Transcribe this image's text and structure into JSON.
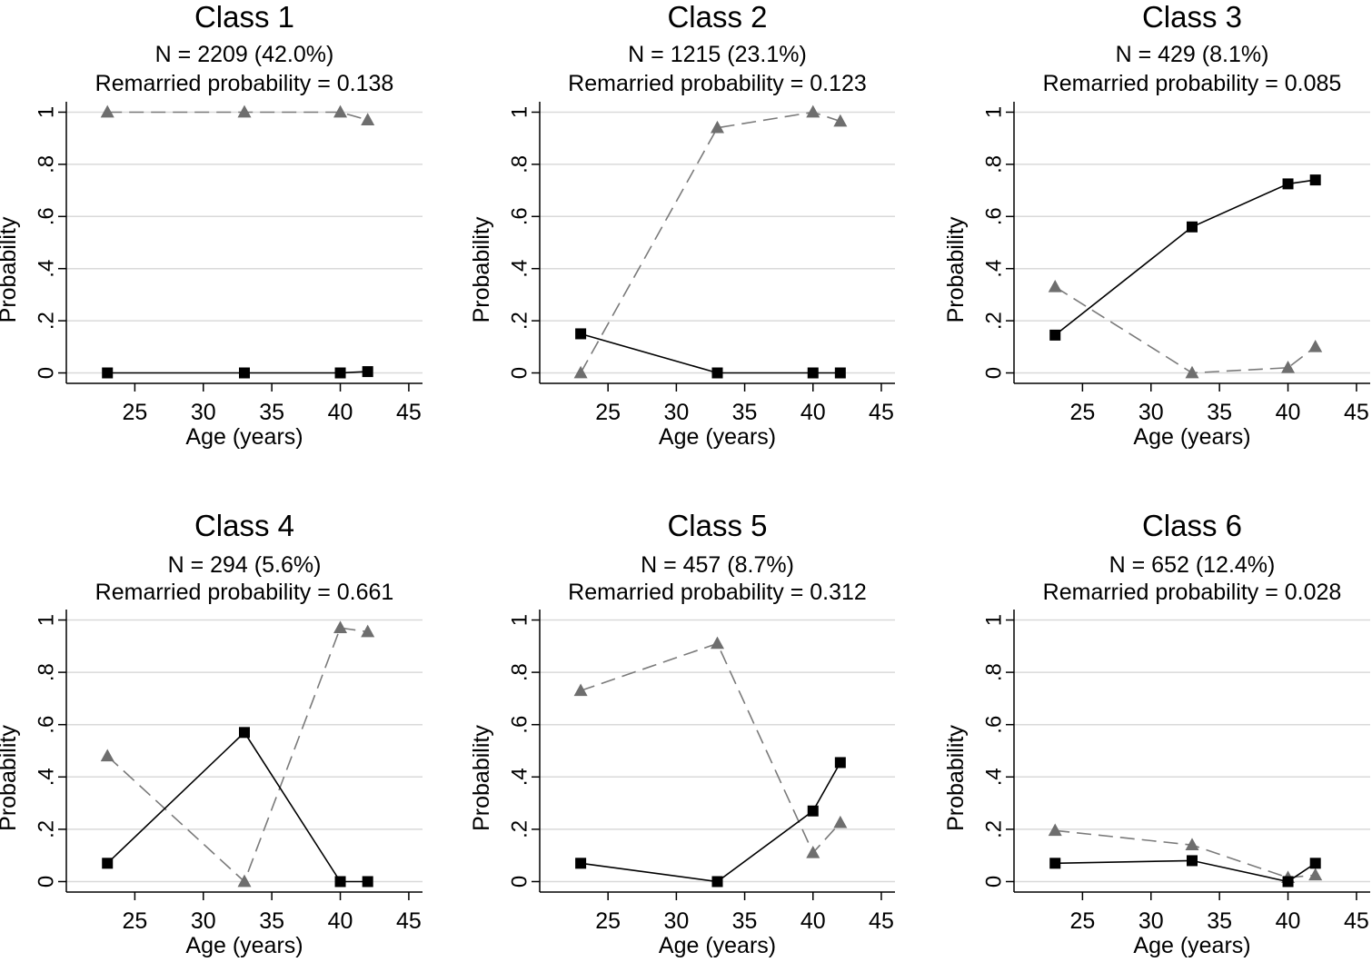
{
  "chart_data": [
    {
      "type": "line",
      "title": "Class 1",
      "subtitle": "N = 2209 (42.0%)",
      "note": "Remarried probability = 0.138",
      "xlabel": "Age (years)",
      "ylabel": "Probability",
      "xlim": [
        20,
        46
      ],
      "ylim": [
        -0.04,
        1.04
      ],
      "xticks": [
        25,
        30,
        35,
        40,
        45
      ],
      "yticks": [
        "0",
        ".2",
        ".4",
        ".6",
        ".8",
        "1"
      ],
      "ytick_values": [
        0,
        0.2,
        0.4,
        0.6,
        0.8,
        1
      ],
      "grid": true,
      "series": [
        {
          "style": "dashed-gray-triangle",
          "x": [
            23,
            33,
            40,
            42
          ],
          "values": [
            1.0,
            1.0,
            1.0,
            0.97
          ]
        },
        {
          "style": "solid-black-square",
          "x": [
            23,
            33,
            40,
            42
          ],
          "values": [
            0.0,
            0.0,
            0.0,
            0.005
          ]
        }
      ]
    },
    {
      "type": "line",
      "title": "Class 2",
      "subtitle": "N = 1215 (23.1%)",
      "note": "Remarried probability = 0.123",
      "xlabel": "Age (years)",
      "ylabel": "Probability",
      "xlim": [
        20,
        46
      ],
      "ylim": [
        -0.04,
        1.04
      ],
      "xticks": [
        25,
        30,
        35,
        40,
        45
      ],
      "yticks": [
        "0",
        ".2",
        ".4",
        ".6",
        ".8",
        "1"
      ],
      "ytick_values": [
        0,
        0.2,
        0.4,
        0.6,
        0.8,
        1
      ],
      "grid": true,
      "series": [
        {
          "style": "dashed-gray-triangle",
          "x": [
            23,
            33,
            40,
            42
          ],
          "values": [
            0.0,
            0.94,
            1.0,
            0.965
          ]
        },
        {
          "style": "solid-black-square",
          "x": [
            23,
            33,
            40,
            42
          ],
          "values": [
            0.15,
            0.0,
            0.0,
            0.0
          ]
        }
      ]
    },
    {
      "type": "line",
      "title": "Class 3",
      "subtitle": "N = 429 (8.1%)",
      "note": "Remarried probability = 0.085",
      "xlabel": "Age (years)",
      "ylabel": "Probability",
      "xlim": [
        20,
        46
      ],
      "ylim": [
        -0.04,
        1.04
      ],
      "xticks": [
        25,
        30,
        35,
        40,
        45
      ],
      "yticks": [
        "0",
        ".2",
        ".4",
        ".6",
        ".8",
        "1"
      ],
      "ytick_values": [
        0,
        0.2,
        0.4,
        0.6,
        0.8,
        1
      ],
      "grid": true,
      "series": [
        {
          "style": "dashed-gray-triangle",
          "x": [
            23,
            33,
            40,
            42
          ],
          "values": [
            0.33,
            0.0,
            0.02,
            0.1
          ]
        },
        {
          "style": "solid-black-square",
          "x": [
            23,
            33,
            40,
            42
          ],
          "values": [
            0.145,
            0.56,
            0.725,
            0.74
          ]
        }
      ]
    },
    {
      "type": "line",
      "title": "Class 4",
      "subtitle": "N = 294 (5.6%)",
      "note": "Remarried probability = 0.661",
      "xlabel": "Age (years)",
      "ylabel": "Probability",
      "xlim": [
        20,
        46
      ],
      "ylim": [
        -0.04,
        1.04
      ],
      "xticks": [
        25,
        30,
        35,
        40,
        45
      ],
      "yticks": [
        "0",
        ".2",
        ".4",
        ".6",
        ".8",
        "1"
      ],
      "ytick_values": [
        0,
        0.2,
        0.4,
        0.6,
        0.8,
        1
      ],
      "grid": true,
      "series": [
        {
          "style": "dashed-gray-triangle",
          "x": [
            23,
            33,
            40,
            42
          ],
          "values": [
            0.48,
            0.0,
            0.97,
            0.955
          ]
        },
        {
          "style": "solid-black-square",
          "x": [
            23,
            33,
            40,
            42
          ],
          "values": [
            0.07,
            0.57,
            0.0,
            0.0
          ]
        }
      ]
    },
    {
      "type": "line",
      "title": "Class 5",
      "subtitle": "N = 457 (8.7%)",
      "note": "Remarried probability = 0.312",
      "xlabel": "Age (years)",
      "ylabel": "Probability",
      "xlim": [
        20,
        46
      ],
      "ylim": [
        -0.04,
        1.04
      ],
      "xticks": [
        25,
        30,
        35,
        40,
        45
      ],
      "yticks": [
        "0",
        ".2",
        ".4",
        ".6",
        ".8",
        "1"
      ],
      "ytick_values": [
        0,
        0.2,
        0.4,
        0.6,
        0.8,
        1
      ],
      "grid": true,
      "series": [
        {
          "style": "dashed-gray-triangle",
          "x": [
            23,
            33,
            40,
            42
          ],
          "values": [
            0.73,
            0.91,
            0.11,
            0.225
          ]
        },
        {
          "style": "solid-black-square",
          "x": [
            23,
            33,
            40,
            42
          ],
          "values": [
            0.07,
            0.0,
            0.27,
            0.455
          ]
        }
      ]
    },
    {
      "type": "line",
      "title": "Class 6",
      "subtitle": "N = 652 (12.4%)",
      "note": "Remarried probability = 0.028",
      "xlabel": "Age (years)",
      "ylabel": "Probability",
      "xlim": [
        20,
        46
      ],
      "ylim": [
        -0.04,
        1.04
      ],
      "xticks": [
        25,
        30,
        35,
        40,
        45
      ],
      "yticks": [
        "0",
        ".2",
        ".4",
        ".6",
        ".8",
        "1"
      ],
      "ytick_values": [
        0,
        0.2,
        0.4,
        0.6,
        0.8,
        1
      ],
      "grid": true,
      "series": [
        {
          "style": "dashed-gray-triangle",
          "x": [
            23,
            33,
            40,
            42
          ],
          "values": [
            0.195,
            0.14,
            0.015,
            0.025
          ]
        },
        {
          "style": "solid-black-square",
          "x": [
            23,
            33,
            40,
            42
          ],
          "values": [
            0.07,
            0.08,
            0.0,
            0.07
          ]
        }
      ]
    }
  ]
}
